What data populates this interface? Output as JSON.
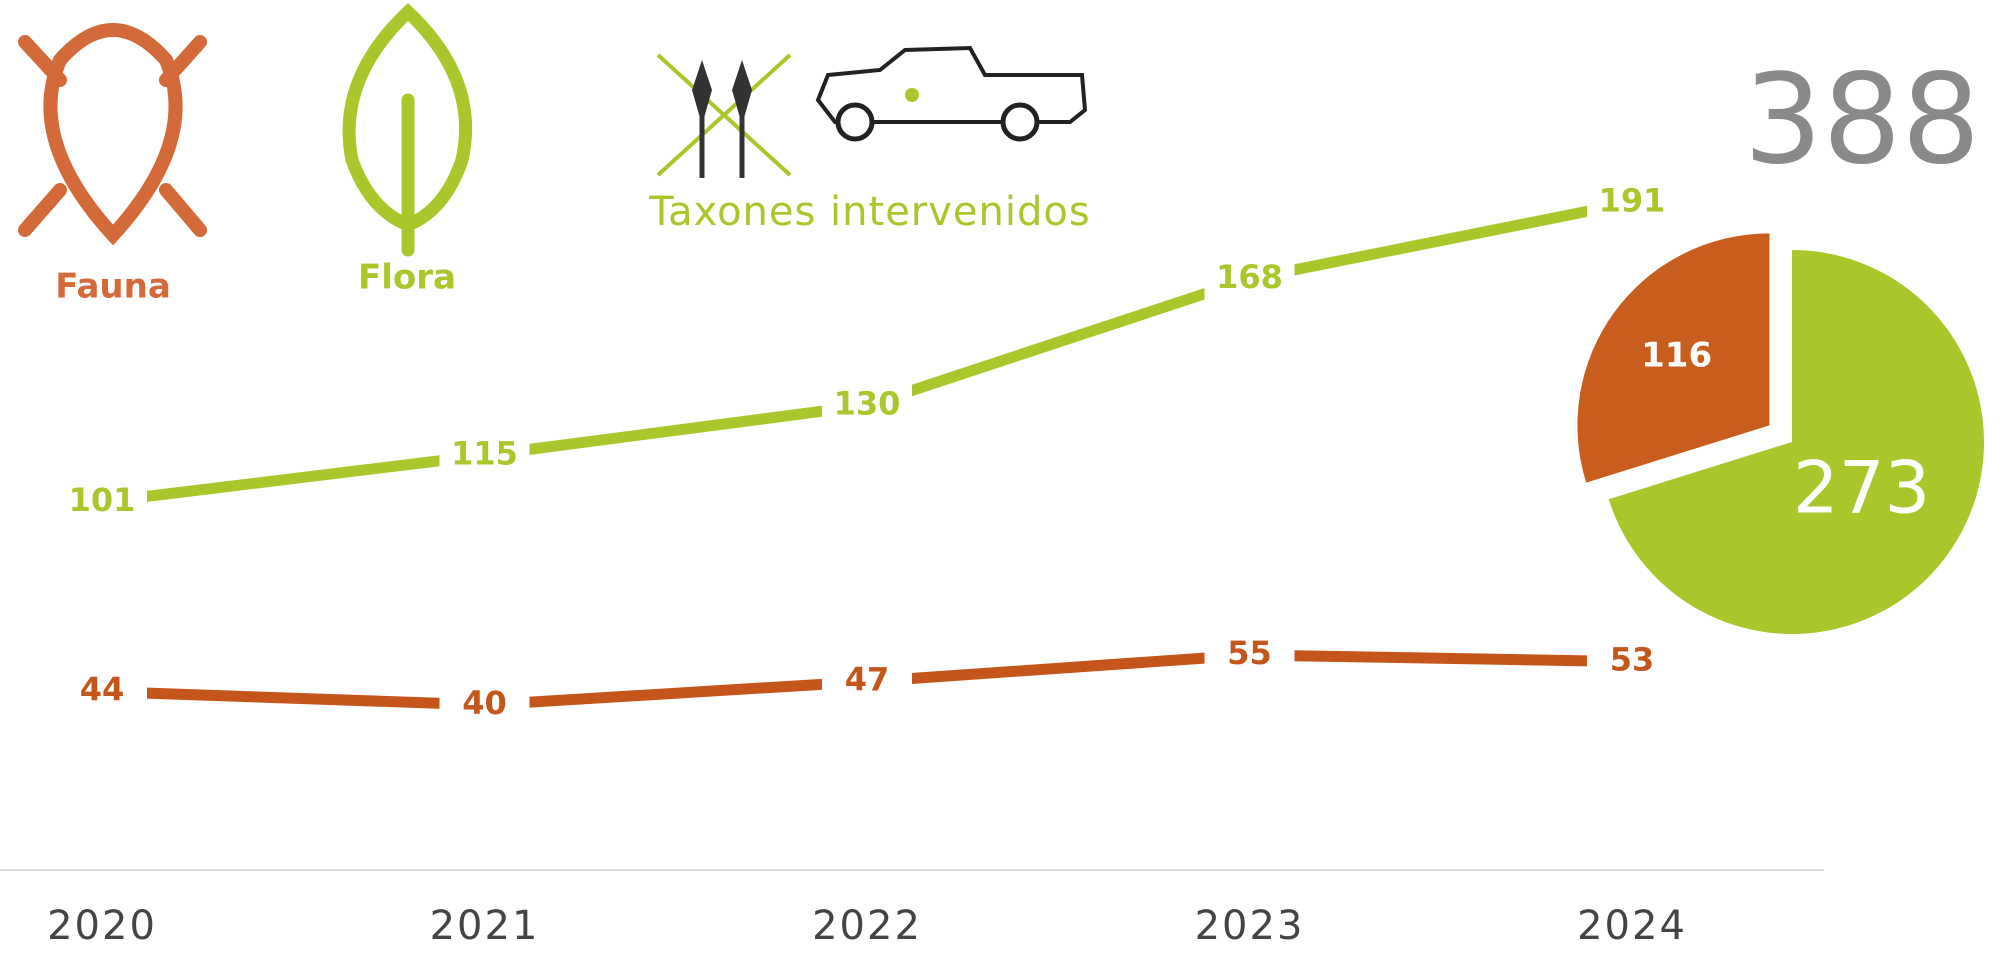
{
  "chart_data": [
    {
      "type": "line",
      "title": "Taxones intervenidos",
      "categories": [
        "2020",
        "2021",
        "2022",
        "2023",
        "2024"
      ],
      "series": [
        {
          "name": "Fauna",
          "color": "#c4561c",
          "values": [
            44,
            40,
            47,
            55,
            53
          ]
        },
        {
          "name": "Flora",
          "color": "#a9c62b",
          "values": [
            101,
            115,
            130,
            168,
            191
          ]
        }
      ],
      "ylim": [
        0,
        250
      ]
    },
    {
      "type": "pie",
      "total": 388,
      "values": [
        116,
        273
      ],
      "colors": [
        "#c95d1e",
        "#a9c62b"
      ]
    }
  ]
}
